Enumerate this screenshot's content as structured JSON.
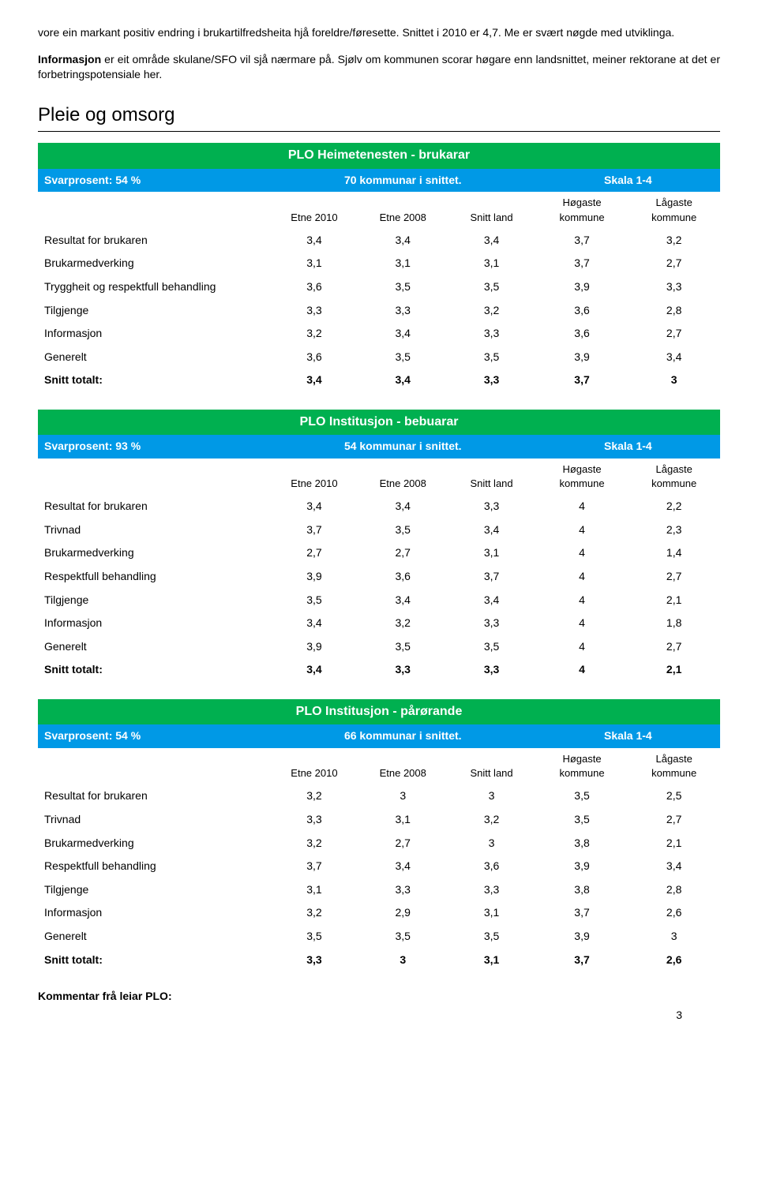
{
  "colors": {
    "titleRowBg": "#00b050",
    "headerRowBg": "#0099e6",
    "textWhite": "#ffffff",
    "textBlack": "#000000"
  },
  "paragraphs": {
    "p1": "vore ein markant positiv endring i brukartilfredsheita hjå foreldre/føresette. Snittet i 2010 er 4,7. Me er svært nøgde med utviklinga.",
    "p2a": "Informasjon",
    "p2b": " er eit område skulane/SFO vil sjå nærmare på. Sjølv om kommunen scorar høgare enn landsnittet, meiner rektorane at det er forbetringspotensiale her."
  },
  "sectionTitle": "Pleie og omsorg",
  "columnHeaders": [
    "",
    "Etne 2010",
    "Etne 2008",
    "Snitt land",
    "Høgaste kommune",
    "Lågaste kommune"
  ],
  "tables": [
    {
      "title": "PLO Heimetenesten - brukarar",
      "svarprosent": "Svarprosent: 54 %",
      "kommunar": "70 kommunar i snittet.",
      "skala": "Skala 1-4",
      "rows": [
        {
          "label": "Resultat for brukaren",
          "v": [
            "3,4",
            "3,4",
            "3,4",
            "3,7",
            "3,2"
          ]
        },
        {
          "label": "Brukarmedverking",
          "v": [
            "3,1",
            "3,1",
            "3,1",
            "3,7",
            "2,7"
          ]
        },
        {
          "label": "Tryggheit og respektfull behandling",
          "v": [
            "3,6",
            "3,5",
            "3,5",
            "3,9",
            "3,3"
          ]
        },
        {
          "label": "Tilgjenge",
          "v": [
            "3,3",
            "3,3",
            "3,2",
            "3,6",
            "2,8"
          ]
        },
        {
          "label": "Informasjon",
          "v": [
            "3,2",
            "3,4",
            "3,3",
            "3,6",
            "2,7"
          ]
        },
        {
          "label": "Generelt",
          "v": [
            "3,6",
            "3,5",
            "3,5",
            "3,9",
            "3,4"
          ]
        },
        {
          "label": "Snitt totalt:",
          "v": [
            "3,4",
            "3,4",
            "3,3",
            "3,7",
            "3"
          ],
          "bold": true
        }
      ]
    },
    {
      "title": "PLO Institusjon - bebuarar",
      "svarprosent": "Svarprosent: 93 %",
      "kommunar": "54 kommunar i snittet.",
      "skala": "Skala 1-4",
      "rows": [
        {
          "label": "Resultat for brukaren",
          "v": [
            "3,4",
            "3,4",
            "3,3",
            "4",
            "2,2"
          ]
        },
        {
          "label": "Trivnad",
          "v": [
            "3,7",
            "3,5",
            "3,4",
            "4",
            "2,3"
          ]
        },
        {
          "label": "Brukarmedverking",
          "v": [
            "2,7",
            "2,7",
            "3,1",
            "4",
            "1,4"
          ]
        },
        {
          "label": "Respektfull behandling",
          "v": [
            "3,9",
            "3,6",
            "3,7",
            "4",
            "2,7"
          ]
        },
        {
          "label": "Tilgjenge",
          "v": [
            "3,5",
            "3,4",
            "3,4",
            "4",
            "2,1"
          ]
        },
        {
          "label": "Informasjon",
          "v": [
            "3,4",
            "3,2",
            "3,3",
            "4",
            "1,8"
          ]
        },
        {
          "label": "Generelt",
          "v": [
            "3,9",
            "3,5",
            "3,5",
            "4",
            "2,7"
          ]
        },
        {
          "label": "Snitt totalt:",
          "v": [
            "3,4",
            "3,3",
            "3,3",
            "4",
            "2,1"
          ],
          "bold": true
        }
      ]
    },
    {
      "title": "PLO Institusjon - pårørande",
      "svarprosent": "Svarprosent: 54 %",
      "kommunar": "66 kommunar i snittet.",
      "skala": "Skala 1-4",
      "rows": [
        {
          "label": "Resultat for brukaren",
          "v": [
            "3,2",
            "3",
            "3",
            "3,5",
            "2,5"
          ]
        },
        {
          "label": "Trivnad",
          "v": [
            "3,3",
            "3,1",
            "3,2",
            "3,5",
            "2,7"
          ]
        },
        {
          "label": "Brukarmedverking",
          "v": [
            "3,2",
            "2,7",
            "3",
            "3,8",
            "2,1"
          ]
        },
        {
          "label": "Respektfull behandling",
          "v": [
            "3,7",
            "3,4",
            "3,6",
            "3,9",
            "3,4"
          ]
        },
        {
          "label": "Tilgjenge",
          "v": [
            "3,1",
            "3,3",
            "3,3",
            "3,8",
            "2,8"
          ]
        },
        {
          "label": "Informasjon",
          "v": [
            "3,2",
            "2,9",
            "3,1",
            "3,7",
            "2,6"
          ]
        },
        {
          "label": "Generelt",
          "v": [
            "3,5",
            "3,5",
            "3,5",
            "3,9",
            "3"
          ]
        },
        {
          "label": "Snitt totalt:",
          "v": [
            "3,3",
            "3",
            "3,1",
            "3,7",
            "2,6"
          ],
          "bold": true
        }
      ]
    }
  ],
  "footerLabel": "Kommentar frå leiar PLO:",
  "pageNumber": "3",
  "columnWidths": [
    "34%",
    "13%",
    "13%",
    "13%",
    "13.5%",
    "13.5%"
  ]
}
